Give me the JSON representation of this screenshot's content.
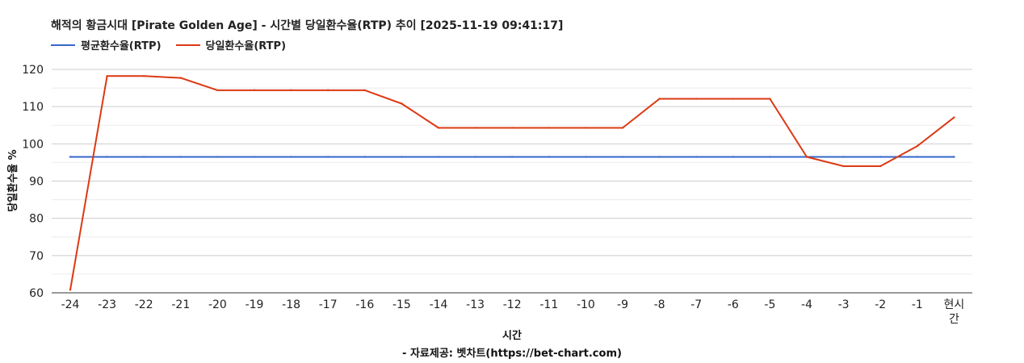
{
  "chart_data": {
    "type": "line",
    "title": "해적의 황금시대 [Pirate Golden Age] - 시간별 당일환수율(RTP) 추이 [2025-11-19 09:41:17]",
    "xlabel": "시간",
    "ylabel": "당일환수율 %",
    "source": "- 자료제공: 벳차트(https://bet-chart.com)",
    "categories": [
      "-24",
      "-23",
      "-22",
      "-21",
      "-20",
      "-19",
      "-18",
      "-17",
      "-16",
      "-15",
      "-14",
      "-13",
      "-12",
      "-11",
      "-10",
      "-9",
      "-8",
      "-7",
      "-6",
      "-5",
      "-4",
      "-3",
      "-2",
      "-1",
      "현시간"
    ],
    "ylim": [
      60,
      120
    ],
    "yticks": [
      60,
      70,
      80,
      90,
      100,
      110,
      120
    ],
    "grid": true,
    "legend_position": "top-left",
    "series": [
      {
        "name": "평균환수율(RTP)",
        "color": "#3366cc",
        "values": [
          96.5,
          96.5,
          96.5,
          96.5,
          96.5,
          96.5,
          96.5,
          96.5,
          96.5,
          96.5,
          96.5,
          96.5,
          96.5,
          96.5,
          96.5,
          96.5,
          96.5,
          96.5,
          96.5,
          96.5,
          96.5,
          96.5,
          96.5,
          96.5,
          96.5
        ]
      },
      {
        "name": "당일환수율(RTP)",
        "color": "#dc3912",
        "values": [
          60.8,
          118.2,
          118.2,
          117.7,
          114.4,
          114.4,
          114.4,
          114.4,
          114.4,
          110.8,
          104.3,
          104.3,
          104.3,
          104.3,
          104.3,
          104.3,
          112.1,
          112.1,
          112.1,
          112.1,
          96.5,
          94.0,
          94.0,
          99.4,
          107.1
        ]
      }
    ]
  }
}
